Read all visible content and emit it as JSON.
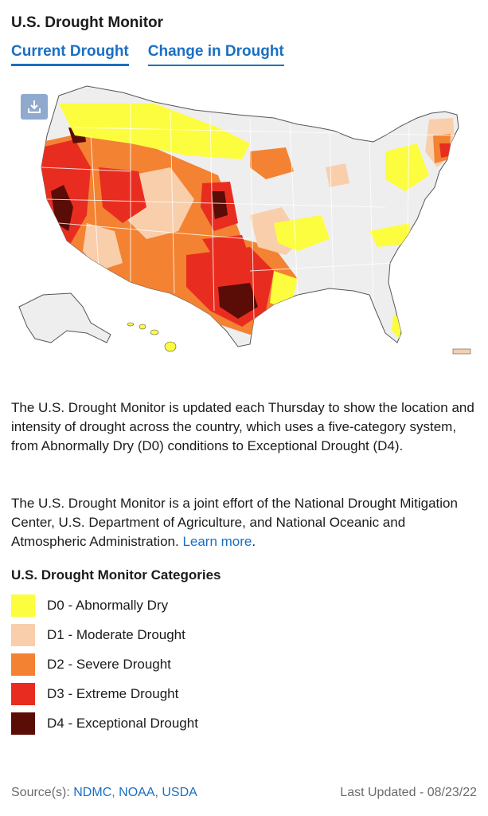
{
  "header": {
    "title": "U.S. Drought Monitor",
    "tabs": [
      {
        "label": "Current Drought",
        "active": true
      },
      {
        "label": "Change in Drought",
        "active": false
      }
    ]
  },
  "map": {
    "download_icon": "download-icon",
    "colors": {
      "background": "#f0f0f0",
      "state_border": "#ffffff",
      "D0": "#ffff00",
      "D1": "#fcd37f",
      "D2": "#ffaa00",
      "D3": "#e60000",
      "D4": "#730000"
    }
  },
  "description": {
    "p1": "The U.S. Drought Monitor is updated each Thursday to show the location and intensity of drought across the country, which uses a five-category system, from Abnormally Dry (D0) conditions to Exceptional Drought (D4).",
    "p2_text": "The U.S. Drought Monitor is a joint effort of the National Drought Mitigation Center, U.S. Department of Agriculture, and National Oceanic and Atmospheric Administration.",
    "p2_link": "Learn more",
    "p2_end": "."
  },
  "categories": {
    "title": "U.S. Drought Monitor Categories",
    "items": [
      {
        "label": "D0 - Abnormally Dry",
        "color": "#fdfd3f"
      },
      {
        "label": "D1 - Moderate Drought",
        "color": "#f9ceaa"
      },
      {
        "label": "D2 - Severe Drought",
        "color": "#f38232"
      },
      {
        "label": "D3 - Extreme Drought",
        "color": "#e82d20"
      },
      {
        "label": "D4 - Exceptional Drought",
        "color": "#5a0c06"
      }
    ]
  },
  "footer": {
    "source_label": "Source(s):",
    "sources": [
      "NDMC",
      "NOAA",
      "USDA"
    ],
    "last_updated_label": "Last Updated",
    "separator": "-",
    "last_updated_date": "08/23/22"
  }
}
